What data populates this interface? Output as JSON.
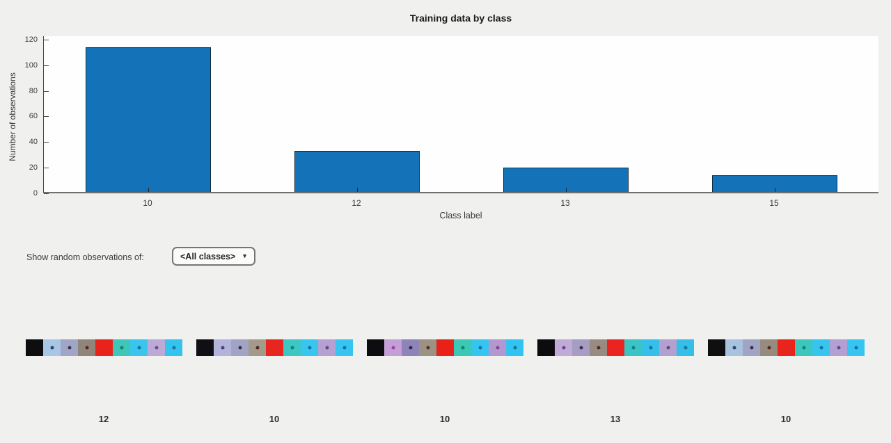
{
  "chart": {
    "title": "Training data by class",
    "xlabel": "Class label",
    "ylabel": "Number of observations",
    "y_ticks": [
      0,
      20,
      40,
      60,
      80,
      100,
      120
    ],
    "x_ticks": [
      "10",
      "12",
      "13",
      "15"
    ]
  },
  "chart_data": {
    "type": "bar",
    "title": "Training data by class",
    "xlabel": "Class label",
    "ylabel": "Number of observations",
    "categories": [
      "10",
      "12",
      "13",
      "15"
    ],
    "values": [
      113,
      32,
      19,
      13
    ],
    "ylim": [
      0,
      120
    ],
    "grid": false,
    "legend_position": "none",
    "bar_color": "#1473b8",
    "bar_edge_color": "#122b3d"
  },
  "controls": {
    "label": "Show random observations of:",
    "dropdown_value": "<All classes>",
    "dropdown_arrow_icon": "▼"
  },
  "samples": [
    {
      "label": "12",
      "blocks": [
        {
          "c": "#0e0e10",
          "dot": null
        },
        {
          "c": "#a9c6e4",
          "dot": "#2e4470"
        },
        {
          "c": "#9fa6c6",
          "dot": "#3c3550"
        },
        {
          "c": "#90857a",
          "dot": "#53281e"
        },
        {
          "c": "#e8231c",
          "dot": null
        },
        {
          "c": "#3ec7b9",
          "dot": "#1c7f76"
        },
        {
          "c": "#38c6ee",
          "dot": "#1a6f9c"
        },
        {
          "c": "#bda9d6",
          "dot": "#6c4a8a"
        },
        {
          "c": "#33c4ee",
          "dot": "#1a6f9c"
        }
      ]
    },
    {
      "label": "10",
      "blocks": [
        {
          "c": "#101014",
          "dot": null
        },
        {
          "c": "#b3b4dc",
          "dot": "#4a3f78"
        },
        {
          "c": "#a3a3c6",
          "dot": "#35304e"
        },
        {
          "c": "#a39a8c",
          "dot": "#4c2a22"
        },
        {
          "c": "#e8261f",
          "dot": null
        },
        {
          "c": "#3cc7c2",
          "dot": "#177f79"
        },
        {
          "c": "#36c6f0",
          "dot": "#1b6f9e"
        },
        {
          "c": "#b5a0d2",
          "dot": "#6b4588"
        },
        {
          "c": "#35c5f0",
          "dot": "#1b6f9e"
        }
      ]
    },
    {
      "label": "10",
      "blocks": [
        {
          "c": "#0d0d10",
          "dot": null
        },
        {
          "c": "#c49fd6",
          "dot": "#a03ea8"
        },
        {
          "c": "#8d85b8",
          "dot": "#31284e"
        },
        {
          "c": "#9b9184",
          "dot": "#5c2c20"
        },
        {
          "c": "#e8221b",
          "dot": null
        },
        {
          "c": "#3bc8b4",
          "dot": "#14807a"
        },
        {
          "c": "#34c5f0",
          "dot": "#1b6f9e"
        },
        {
          "c": "#b398cf",
          "dot": "#8a3f98"
        },
        {
          "c": "#32c4f0",
          "dot": "#1b6f9e"
        }
      ]
    },
    {
      "label": "13",
      "blocks": [
        {
          "c": "#0c0c0e",
          "dot": null
        },
        {
          "c": "#c0aad8",
          "dot": "#6b3f90"
        },
        {
          "c": "#a79cc2",
          "dot": "#3b2f55"
        },
        {
          "c": "#988c80",
          "dot": "#542a20"
        },
        {
          "c": "#ea2420",
          "dot": null
        },
        {
          "c": "#3ac4c4",
          "dot": "#187d80"
        },
        {
          "c": "#35c0ea",
          "dot": "#1b6f9c"
        },
        {
          "c": "#b2a0ce",
          "dot": "#6a4486"
        },
        {
          "c": "#35bfe8",
          "dot": "#1b6f9c"
        }
      ]
    },
    {
      "label": "10",
      "blocks": [
        {
          "c": "#0f0f12",
          "dot": null
        },
        {
          "c": "#a9c2e0",
          "dot": "#2d4370"
        },
        {
          "c": "#a1a4c4",
          "dot": "#36304e"
        },
        {
          "c": "#968b7e",
          "dot": "#53291f"
        },
        {
          "c": "#e8241d",
          "dot": null
        },
        {
          "c": "#3cc6bc",
          "dot": "#167e78"
        },
        {
          "c": "#36c5ee",
          "dot": "#1b6f9e"
        },
        {
          "c": "#b49fd2",
          "dot": "#6b4588"
        },
        {
          "c": "#35c5f0",
          "dot": "#1b6f9e"
        }
      ]
    }
  ]
}
